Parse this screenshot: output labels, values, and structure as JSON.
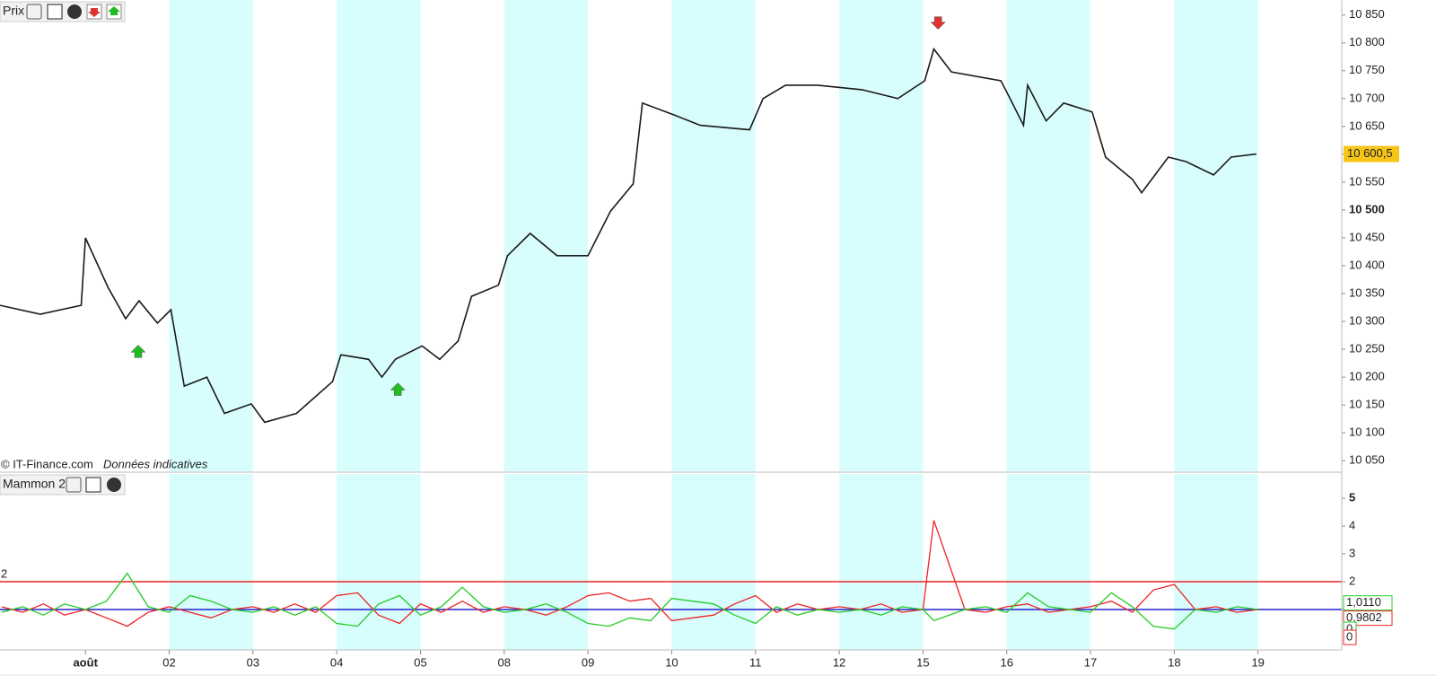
{
  "toolbar_price": {
    "title": "Prix"
  },
  "toolbar_indicator": {
    "title": "Mammon 2"
  },
  "watermark": {
    "source": "© IT-Finance.com",
    "note": "Données indicatives"
  },
  "chart_data": [
    {
      "type": "line",
      "xlim": [
        -1.02,
        15.0
      ],
      "ylim": [
        10031,
        10877
      ],
      "yticks": [
        {
          "value": 10850,
          "label": "10 850"
        },
        {
          "value": 10800,
          "label": "10 800"
        },
        {
          "value": 10750,
          "label": "10 750"
        },
        {
          "value": 10700,
          "label": "10 700"
        },
        {
          "value": 10650,
          "label": "10 650"
        },
        {
          "value": 10600,
          "label": "10 600"
        },
        {
          "value": 10550,
          "label": "10 550"
        },
        {
          "value": 10500,
          "label": "10 500"
        },
        {
          "value": 10450,
          "label": "10 450"
        },
        {
          "value": 10400,
          "label": "10 400"
        },
        {
          "value": 10350,
          "label": "10 350"
        },
        {
          "value": 10300,
          "label": "10 300"
        },
        {
          "value": 10250,
          "label": "10 250"
        },
        {
          "value": 10200,
          "label": "10 200"
        },
        {
          "value": 10150,
          "label": "10 150"
        },
        {
          "value": 10100,
          "label": "10 100"
        },
        {
          "value": 10050,
          "label": "10 050"
        }
      ],
      "bold_tick": 10500,
      "shaded_days": [
        [
          1,
          2
        ],
        [
          3,
          4
        ],
        [
          5,
          6
        ],
        [
          7,
          8
        ],
        [
          9,
          10
        ],
        [
          11,
          12
        ],
        [
          13,
          14
        ]
      ],
      "series": [
        {
          "name": "Prix",
          "color": "#1a1a1a",
          "x": [
            -1.02,
            -0.54,
            -0.05,
            0,
            0.27,
            0.48,
            0.64,
            0.86,
            1.02,
            1.18,
            1.45,
            1.66,
            1.98,
            2.14,
            2.52,
            2.95,
            3.05,
            3.38,
            3.54,
            3.7,
            4.02,
            4.23,
            4.45,
            4.61,
            4.93,
            5.04,
            5.31,
            5.63,
            6.0,
            6.27,
            6.54,
            6.65,
            7.02,
            7.34,
            7.93,
            8.09,
            8.36,
            8.74,
            9.27,
            9.7,
            10.02,
            10.13,
            10.34,
            10.93,
            11.04,
            11.2,
            11.25,
            11.47,
            11.68,
            12.02,
            12.18,
            12.5,
            12.61,
            12.93,
            13.14,
            13.47,
            13.68,
            13.98
          ],
          "values": [
            10329,
            10313,
            10329,
            10450,
            10361,
            10305,
            10337,
            10297,
            10321,
            10184,
            10200,
            10135,
            10152,
            10119,
            10135,
            10192,
            10240,
            10232,
            10200,
            10232,
            10256,
            10232,
            10265,
            10345,
            10365,
            10418,
            10458,
            10418,
            10418,
            10498,
            10547,
            10692,
            10671,
            10652,
            10644,
            10700,
            10724,
            10724,
            10716,
            10700,
            10732,
            10789,
            10748,
            10732,
            10700,
            10652,
            10724,
            10660,
            10692,
            10676,
            10595,
            10555,
            10531,
            10595,
            10587,
            10563,
            10595,
            10600.5
          ]
        }
      ],
      "buy_signals": {
        "color": "#22bb22",
        "x": [
          0.63,
          3.73
        ],
        "values": [
          10248,
          10180
        ]
      },
      "sell_signals": {
        "color": "#dd3333",
        "x": [
          10.18
        ],
        "values": [
          10834
        ]
      },
      "last_value": {
        "value": 10600.5,
        "label": "10 600,5",
        "color": "#f5c518"
      }
    },
    {
      "type": "line",
      "xlim": [
        -1.02,
        15.0
      ],
      "ylim": [
        -0.45,
        5.87
      ],
      "yticks": [
        1,
        2,
        3,
        4,
        5
      ],
      "bold_tick": 5,
      "xticks": [
        {
          "value": 0,
          "label": "août"
        },
        {
          "value": 1,
          "label": "02"
        },
        {
          "value": 2,
          "label": "03"
        },
        {
          "value": 3,
          "label": "04"
        },
        {
          "value": 4,
          "label": "05"
        },
        {
          "value": 5,
          "label": "08"
        },
        {
          "value": 6,
          "label": "09"
        },
        {
          "value": 7,
          "label": "10"
        },
        {
          "value": 8,
          "label": "11"
        },
        {
          "value": 9,
          "label": "12"
        },
        {
          "value": 10,
          "label": "15"
        },
        {
          "value": 11,
          "label": "16"
        },
        {
          "value": 12,
          "label": "17"
        },
        {
          "value": 13,
          "label": "18"
        },
        {
          "value": 14,
          "label": "19"
        }
      ],
      "shaded_days": [
        [
          1,
          2
        ],
        [
          3,
          4
        ],
        [
          5,
          6
        ],
        [
          7,
          8
        ],
        [
          9,
          10
        ],
        [
          11,
          12
        ],
        [
          13,
          14
        ]
      ],
      "hlines": [
        {
          "value": 2,
          "color": "#ee2222"
        },
        {
          "value": 1,
          "color": "#2222cc"
        }
      ],
      "x": [
        -1,
        -0.75,
        -0.5,
        -0.25,
        0,
        0.25,
        0.5,
        0.75,
        1,
        1.25,
        1.5,
        1.75,
        2,
        2.25,
        2.5,
        2.75,
        3,
        3.25,
        3.5,
        3.75,
        4,
        4.25,
        4.5,
        4.75,
        5,
        5.25,
        5.5,
        5.75,
        6,
        6.25,
        6.5,
        6.75,
        7,
        7.25,
        7.5,
        7.75,
        8,
        8.25,
        8.5,
        8.75,
        9,
        9.25,
        9.5,
        9.75,
        10,
        10.13,
        10.5,
        10.75,
        11,
        11.25,
        11.5,
        11.75,
        12,
        12.25,
        12.5,
        12.75,
        13,
        13.25,
        13.5,
        13.75,
        14
      ],
      "series": [
        {
          "name": "rouge",
          "color": "#ee2222",
          "values": [
            1.1,
            0.9,
            1.2,
            0.8,
            1.0,
            0.7,
            0.4,
            0.9,
            1.1,
            0.9,
            0.7,
            1.0,
            1.1,
            0.9,
            1.2,
            0.9,
            1.5,
            1.6,
            0.8,
            0.5,
            1.2,
            0.9,
            1.3,
            0.9,
            1.1,
            1.0,
            0.8,
            1.1,
            1.5,
            1.6,
            1.3,
            1.4,
            0.6,
            0.7,
            0.8,
            1.2,
            1.5,
            0.9,
            1.2,
            1.0,
            1.1,
            1.0,
            1.2,
            0.9,
            1.0,
            4.2,
            1.0,
            0.9,
            1.1,
            1.2,
            0.9,
            1.0,
            1.1,
            1.3,
            0.9,
            1.7,
            1.9,
            1.0,
            1.1,
            0.9,
            1.0
          ]
        },
        {
          "name": "vert",
          "color": "#22cc22",
          "values": [
            0.9,
            1.1,
            0.8,
            1.2,
            1.0,
            1.3,
            2.3,
            1.1,
            0.9,
            1.5,
            1.3,
            1.0,
            0.9,
            1.1,
            0.8,
            1.1,
            0.5,
            0.4,
            1.2,
            1.5,
            0.8,
            1.1,
            1.8,
            1.1,
            0.9,
            1.0,
            1.2,
            0.9,
            0.5,
            0.4,
            0.7,
            0.6,
            1.4,
            1.3,
            1.2,
            0.8,
            0.5,
            1.1,
            0.8,
            1.0,
            0.9,
            1.0,
            0.8,
            1.1,
            1.0,
            0.6,
            1.0,
            1.1,
            0.9,
            1.6,
            1.1,
            1.0,
            0.9,
            1.6,
            1.1,
            0.4,
            0.3,
            1.0,
            0.9,
            1.1,
            1.0
          ]
        }
      ],
      "last_values": [
        {
          "value": 1.011,
          "label": "1,0110",
          "color": "#22cc22"
        },
        {
          "value": 0.9802,
          "label": "0,9802",
          "color": "#ee2222"
        },
        {
          "value": 0,
          "label": "0",
          "color": "#22cc22"
        },
        {
          "value": 0,
          "label": "0",
          "color": "#ee2222"
        }
      ]
    }
  ]
}
